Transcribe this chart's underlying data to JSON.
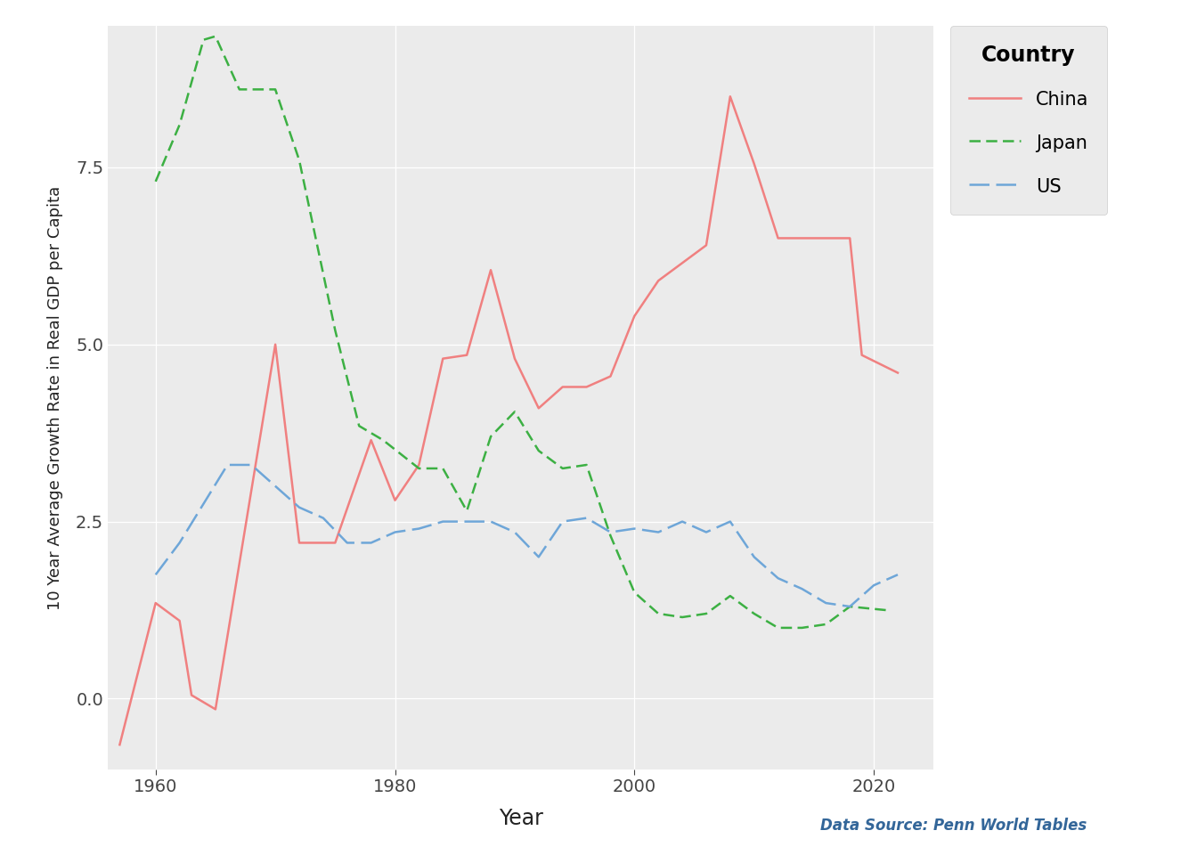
{
  "china_x": [
    1957,
    1960,
    1962,
    1963,
    1965,
    1970,
    1972,
    1975,
    1978,
    1980,
    1982,
    1984,
    1986,
    1988,
    1990,
    1992,
    1994,
    1996,
    1998,
    2000,
    2002,
    2004,
    2006,
    2008,
    2010,
    2012,
    2014,
    2016,
    2018,
    2019,
    2022
  ],
  "china_y": [
    -0.65,
    1.35,
    1.1,
    0.05,
    -0.15,
    5.0,
    2.2,
    2.2,
    3.65,
    2.8,
    3.3,
    4.8,
    4.85,
    6.05,
    4.8,
    4.1,
    4.4,
    4.4,
    4.55,
    5.4,
    5.9,
    6.15,
    6.4,
    8.5,
    7.55,
    6.5,
    6.5,
    6.5,
    6.5,
    4.85,
    4.6
  ],
  "japan_x": [
    1960,
    1962,
    1964,
    1965,
    1967,
    1970,
    1972,
    1975,
    1977,
    1979,
    1982,
    1984,
    1986,
    1988,
    1990,
    1992,
    1994,
    1996,
    1998,
    2000,
    2002,
    2004,
    2006,
    2008,
    2010,
    2012,
    2014,
    2016,
    2018,
    2021
  ],
  "japan_y": [
    7.3,
    8.1,
    9.3,
    9.35,
    8.6,
    8.6,
    7.6,
    5.2,
    3.85,
    3.65,
    3.25,
    3.25,
    2.65,
    3.7,
    4.05,
    3.5,
    3.25,
    3.3,
    2.3,
    1.5,
    1.2,
    1.15,
    1.2,
    1.45,
    1.2,
    1.0,
    1.0,
    1.05,
    1.3,
    1.25
  ],
  "us_x": [
    1960,
    1962,
    1964,
    1966,
    1968,
    1970,
    1972,
    1974,
    1976,
    1978,
    1980,
    1982,
    1984,
    1986,
    1988,
    1990,
    1992,
    1994,
    1996,
    1998,
    2000,
    2002,
    2004,
    2006,
    2008,
    2010,
    2012,
    2014,
    2016,
    2018,
    2020,
    2022
  ],
  "us_y": [
    1.75,
    2.2,
    2.75,
    3.3,
    3.3,
    3.0,
    2.7,
    2.55,
    2.2,
    2.2,
    2.35,
    2.4,
    2.5,
    2.5,
    2.5,
    2.35,
    2.0,
    2.5,
    2.55,
    2.35,
    2.4,
    2.35,
    2.5,
    2.35,
    2.5,
    2.0,
    1.7,
    1.55,
    1.35,
    1.3,
    1.6,
    1.75
  ],
  "china_color": "#F08080",
  "japan_color": "#3CB043",
  "us_color": "#6EA6D8",
  "plot_bg_color": "#EBEBEB",
  "fig_bg_color": "#FFFFFF",
  "grid_color": "#FFFFFF",
  "ylabel": "10 Year Average Growth Rate in Real GDP per Capita",
  "xlabel": "Year",
  "legend_title": "Country",
  "data_source": "Data Source: Penn World Tables",
  "ylim": [
    -1.0,
    9.5
  ],
  "yticks": [
    0.0,
    2.5,
    5.0,
    7.5
  ],
  "xticks": [
    1960,
    1980,
    2000,
    2020
  ]
}
